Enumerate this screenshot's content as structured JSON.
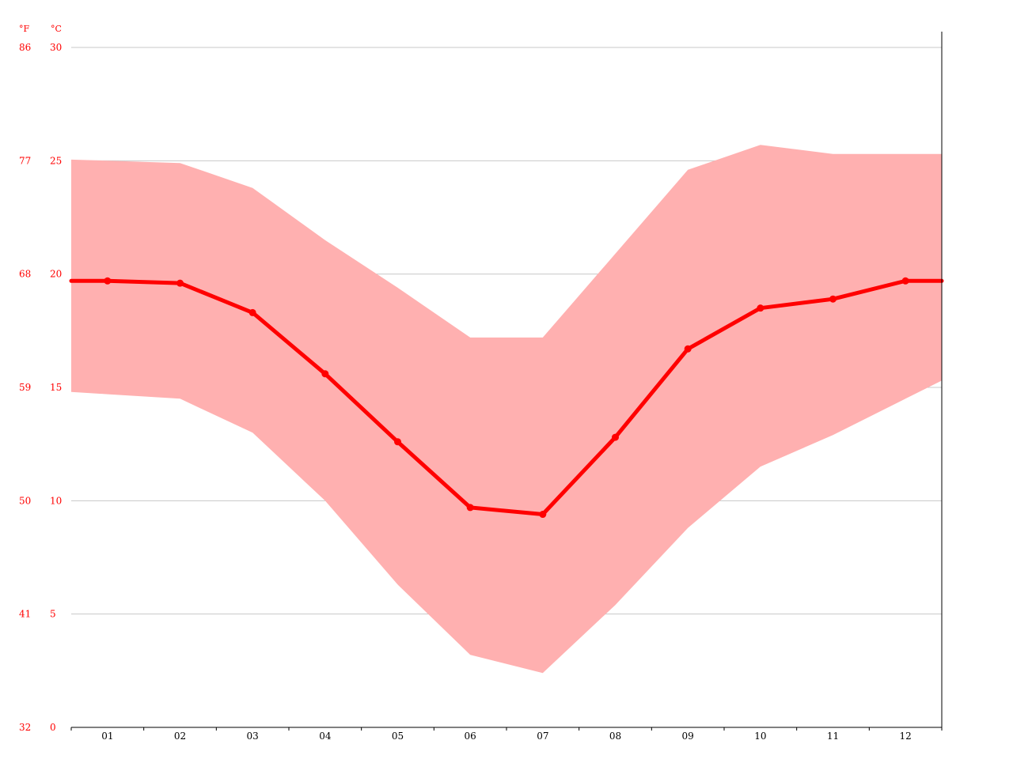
{
  "chart_data": {
    "type": "line",
    "title": "",
    "xlabel": "",
    "ylabel": "",
    "categories": [
      "01",
      "02",
      "03",
      "04",
      "05",
      "06",
      "07",
      "08",
      "09",
      "10",
      "11",
      "12"
    ],
    "series": [
      {
        "values": [
          19.7,
          19.6,
          18.3,
          15.6,
          12.6,
          9.7,
          9.4,
          12.8,
          16.7,
          18.5,
          18.9,
          19.7
        ]
      }
    ],
    "range_band": {
      "upper": [
        25.0,
        24.9,
        23.8,
        21.5,
        19.4,
        17.2,
        17.2,
        20.9,
        24.6,
        25.7,
        25.3,
        25.3
      ],
      "lower": [
        14.7,
        14.5,
        13.0,
        10.0,
        6.3,
        3.2,
        2.4,
        5.4,
        8.8,
        11.5,
        12.9,
        14.5
      ]
    },
    "ylim": [
      0,
      30
    ],
    "celsius_ticks": [
      0,
      5,
      10,
      15,
      20,
      25,
      30
    ],
    "fahrenheit_ticks": [
      32,
      41,
      50,
      59,
      68,
      77,
      86
    ],
    "unit_c": "°C",
    "unit_f": "°F",
    "grid": true,
    "colors": {
      "line": "#ff0000",
      "band": "#ffb0b0",
      "grid": "#c8c8c8",
      "axis": "#000000",
      "tick_text": "#ff0000",
      "category_text": "#000000"
    }
  }
}
